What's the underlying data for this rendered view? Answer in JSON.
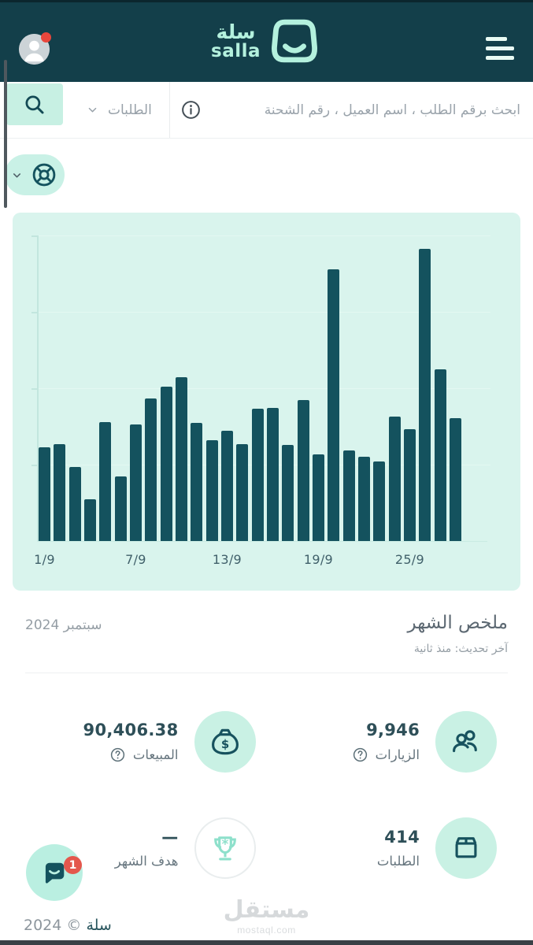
{
  "header": {
    "brand_ar": "سلة",
    "brand_en": "salla"
  },
  "search": {
    "placeholder": "ابحث برقم الطلب ، اسم العميل ، رقم الشحنة",
    "filter_label": "الطلبات"
  },
  "chart_data": {
    "type": "bar",
    "title": "",
    "xlabel": "",
    "ylabel": "",
    "categories": [
      "1/9",
      "2/9",
      "3/9",
      "4/9",
      "5/9",
      "6/9",
      "7/9",
      "8/9",
      "9/9",
      "10/9",
      "11/9",
      "12/9",
      "13/9",
      "14/9",
      "15/9",
      "16/9",
      "17/9",
      "18/9",
      "19/9",
      "20/9",
      "21/9",
      "22/9",
      "23/9",
      "24/9",
      "25/9",
      "26/9",
      "27/9",
      "28/9"
    ],
    "values": [
      119,
      123,
      94,
      53,
      151,
      82,
      148,
      181,
      196,
      208,
      150,
      128,
      140,
      123,
      168,
      169,
      122,
      179,
      110,
      345,
      115,
      107,
      101,
      158,
      142,
      371,
      218,
      156
    ],
    "values_unit": "relative-height-px (y axis unlabeled in source)",
    "x_tick_days": [
      1,
      7,
      13,
      19,
      25
    ],
    "x_tick_labels": [
      "1/9",
      "7/9",
      "13/9",
      "19/9",
      "25/9"
    ],
    "y_axis_labels_visible": false,
    "grid": "faint-horizontal",
    "legend": "none",
    "bar_color": "#14525e",
    "background_color": "#d9f4ed"
  },
  "summary": {
    "title": "ملخص الشهر",
    "subtitle": "آخر تحديث: منذ ثانية",
    "period": "سبتمبر 2024",
    "stats": {
      "visits": {
        "value": "9,946",
        "label": "الزيارات"
      },
      "sales": {
        "value": "90,406.38",
        "label": "المبيعات"
      },
      "orders": {
        "value": "414",
        "label": "الطلبات"
      },
      "goal": {
        "value": "—",
        "label": "هدف الشهر"
      }
    }
  },
  "chat": {
    "badge": "1"
  },
  "footer": {
    "brand": "سلة",
    "copyright": "© 2024"
  },
  "watermark": {
    "title": "مستقل",
    "domain": "mostaql.com"
  },
  "colors": {
    "header_bg": "#133f4a",
    "brand_mint": "#b4f1de",
    "accent_dark_teal": "#14525e",
    "chart_panel_bg": "#d9f4ed",
    "stat_circle_bg": "#c9f1e4",
    "badge_red": "#e4574d"
  }
}
